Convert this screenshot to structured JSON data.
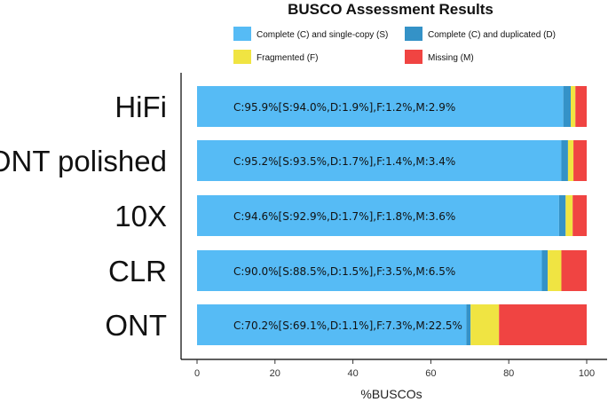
{
  "chart_data": {
    "type": "bar",
    "orientation": "horizontal",
    "stacked": true,
    "title": "BUSCO Assessment Results",
    "xlabel": "%BUSCOs",
    "ylabel": "",
    "xlim": [
      0,
      100
    ],
    "xticks": [
      0,
      20,
      40,
      60,
      80,
      100
    ],
    "legend_position": "top",
    "grid": false,
    "categories": [
      "HiFi",
      "ONT polished",
      "10X",
      "CLR",
      "ONT"
    ],
    "series": [
      {
        "name": "Complete (C) and single-copy (S)",
        "color": "#56BBF5",
        "values": [
          94.0,
          93.5,
          92.9,
          88.5,
          69.1
        ]
      },
      {
        "name": "Complete (C) and duplicated (D)",
        "color": "#3492C7",
        "values": [
          1.9,
          1.7,
          1.7,
          1.5,
          1.1
        ]
      },
      {
        "name": "Fragmented (F)",
        "color": "#F0E442",
        "values": [
          1.2,
          1.4,
          1.8,
          3.5,
          7.3
        ]
      },
      {
        "name": "Missing (M)",
        "color": "#F04442",
        "values": [
          2.9,
          3.4,
          3.6,
          6.5,
          22.5
        ]
      }
    ],
    "annotations": [
      "C:95.9%[S:94.0%,D:1.9%],F:1.2%,M:2.9%",
      "C:95.2%[S:93.5%,D:1.7%],F:1.4%,M:3.4%",
      "C:94.6%[S:92.9%,D:1.7%],F:1.8%,M:3.6%",
      "C:90.0%[S:88.5%,D:1.5%],F:3.5%,M:6.5%",
      "C:70.2%[S:69.1%,D:1.1%],F:7.3%,M:22.5%"
    ]
  }
}
